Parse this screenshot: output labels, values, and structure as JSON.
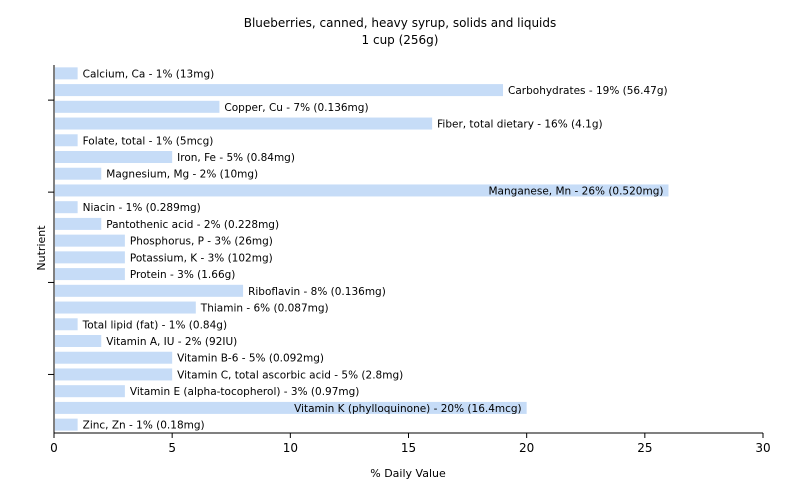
{
  "chart_data": {
    "type": "bar",
    "orientation": "horizontal",
    "title": "Blueberries, canned, heavy syrup, solids and liquids",
    "subtitle": "1 cup (256g)",
    "xlabel": "% Daily Value",
    "ylabel": "Nutrient",
    "xlim": [
      0,
      30
    ],
    "xticks": [
      0,
      5,
      10,
      15,
      20,
      25,
      30
    ],
    "grid": false,
    "legend": "none",
    "bar_color": "#c6dcf7",
    "categories": [
      "Calcium, Ca",
      "Carbohydrates",
      "Copper, Cu",
      "Fiber, total dietary",
      "Folate, total",
      "Iron, Fe",
      "Magnesium, Mg",
      "Manganese, Mn",
      "Niacin",
      "Pantothenic acid",
      "Phosphorus, P",
      "Potassium, K",
      "Protein",
      "Riboflavin",
      "Thiamin",
      "Total lipid (fat)",
      "Vitamin A, IU",
      "Vitamin B-6",
      "Vitamin C, total ascorbic acid",
      "Vitamin E (alpha-tocopherol)",
      "Vitamin K (phylloquinone)",
      "Zinc, Zn"
    ],
    "values": [
      1,
      19,
      7,
      16,
      1,
      5,
      2,
      26,
      1,
      2,
      3,
      3,
      3,
      8,
      6,
      1,
      2,
      5,
      5,
      3,
      20,
      1
    ],
    "labels": [
      "Calcium, Ca - 1% (13mg)",
      "Carbohydrates - 19% (56.47g)",
      "Copper, Cu - 7% (0.136mg)",
      "Fiber, total dietary - 16% (4.1g)",
      "Folate, total - 1% (5mcg)",
      "Iron, Fe - 5% (0.84mg)",
      "Magnesium, Mg - 2% (10mg)",
      "Manganese, Mn - 26% (0.520mg)",
      "Niacin - 1% (0.289mg)",
      "Pantothenic acid - 2% (0.228mg)",
      "Phosphorus, P - 3% (26mg)",
      "Potassium, K - 3% (102mg)",
      "Protein - 3% (1.66g)",
      "Riboflavin - 8% (0.136mg)",
      "Thiamin - 6% (0.087mg)",
      "Total lipid (fat) - 1% (0.84g)",
      "Vitamin A, IU - 2% (92IU)",
      "Vitamin B-6 - 5% (0.092mg)",
      "Vitamin C, total ascorbic acid - 5% (2.8mg)",
      "Vitamin E (alpha-tocopherol) - 3% (0.97mg)",
      "Vitamin K (phylloquinone) - 20% (16.4mcg)",
      "Zinc, Zn - 1% (0.18mg)"
    ]
  }
}
